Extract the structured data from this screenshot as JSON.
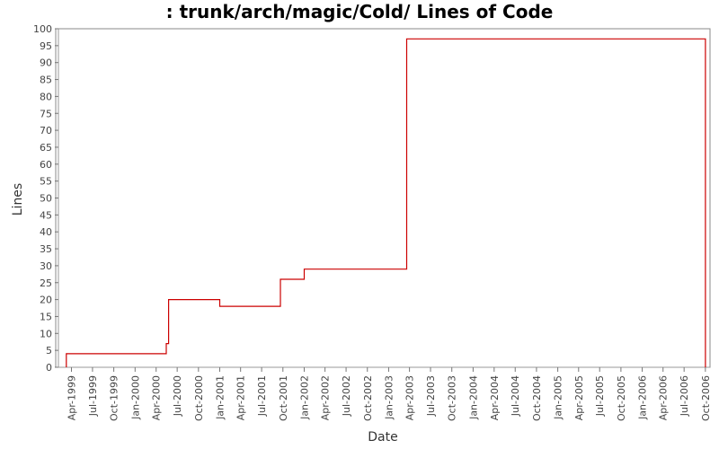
{
  "chart_data": {
    "type": "line",
    "step": true,
    "title": ": trunk/arch/magic/Cold/ Lines of Code",
    "xlabel": "Date",
    "ylabel": "Lines",
    "ylim": [
      0,
      100
    ],
    "yticks": [
      0,
      5,
      10,
      15,
      20,
      25,
      30,
      35,
      40,
      45,
      50,
      55,
      60,
      65,
      70,
      75,
      80,
      85,
      90,
      95,
      100
    ],
    "xlim": [
      "1999-01-23",
      "2006-10-21"
    ],
    "xticks": [
      {
        "date": "1999-04-01",
        "label": "Apr-1999"
      },
      {
        "date": "1999-07-01",
        "label": "Jul-1999"
      },
      {
        "date": "1999-10-01",
        "label": "Oct-1999"
      },
      {
        "date": "2000-01-01",
        "label": "Jan-2000"
      },
      {
        "date": "2000-04-01",
        "label": "Apr-2000"
      },
      {
        "date": "2000-07-01",
        "label": "Jul-2000"
      },
      {
        "date": "2000-10-01",
        "label": "Oct-2000"
      },
      {
        "date": "2001-01-01",
        "label": "Jan-2001"
      },
      {
        "date": "2001-04-01",
        "label": "Apr-2001"
      },
      {
        "date": "2001-07-01",
        "label": "Jul-2001"
      },
      {
        "date": "2001-10-01",
        "label": "Oct-2001"
      },
      {
        "date": "2002-01-01",
        "label": "Jan-2002"
      },
      {
        "date": "2002-04-01",
        "label": "Apr-2002"
      },
      {
        "date": "2002-07-01",
        "label": "Jul-2002"
      },
      {
        "date": "2002-10-01",
        "label": "Oct-2002"
      },
      {
        "date": "2003-01-01",
        "label": "Jan-2003"
      },
      {
        "date": "2003-04-01",
        "label": "Apr-2003"
      },
      {
        "date": "2003-07-01",
        "label": "Jul-2003"
      },
      {
        "date": "2003-10-01",
        "label": "Oct-2003"
      },
      {
        "date": "2004-01-01",
        "label": "Jan-2004"
      },
      {
        "date": "2004-04-01",
        "label": "Apr-2004"
      },
      {
        "date": "2004-07-01",
        "label": "Jul-2004"
      },
      {
        "date": "2004-10-01",
        "label": "Oct-2004"
      },
      {
        "date": "2005-01-01",
        "label": "Jan-2005"
      },
      {
        "date": "2005-04-01",
        "label": "Apr-2005"
      },
      {
        "date": "2005-07-01",
        "label": "Jul-2005"
      },
      {
        "date": "2005-10-01",
        "label": "Oct-2005"
      },
      {
        "date": "2006-01-01",
        "label": "Jan-2006"
      },
      {
        "date": "2006-04-01",
        "label": "Apr-2006"
      },
      {
        "date": "2006-07-01",
        "label": "Jul-2006"
      },
      {
        "date": "2006-10-01",
        "label": "Oct-2006"
      }
    ],
    "series": [
      {
        "color": "#cc0000",
        "points": [
          {
            "x": "1999-03-10",
            "y": 0
          },
          {
            "x": "1999-03-10",
            "y": 4
          },
          {
            "x": "2000-05-15",
            "y": 4
          },
          {
            "x": "2000-05-15",
            "y": 7
          },
          {
            "x": "2000-05-25",
            "y": 7
          },
          {
            "x": "2000-05-25",
            "y": 20
          },
          {
            "x": "2001-01-01",
            "y": 20
          },
          {
            "x": "2001-01-01",
            "y": 18
          },
          {
            "x": "2001-09-20",
            "y": 18
          },
          {
            "x": "2001-09-20",
            "y": 26
          },
          {
            "x": "2002-01-01",
            "y": 26
          },
          {
            "x": "2002-01-01",
            "y": 29
          },
          {
            "x": "2003-03-20",
            "y": 29
          },
          {
            "x": "2003-03-20",
            "y": 97
          },
          {
            "x": "2006-10-01",
            "y": 97
          },
          {
            "x": "2006-10-01",
            "y": 0
          }
        ]
      }
    ],
    "grid": false,
    "legend": "none"
  }
}
